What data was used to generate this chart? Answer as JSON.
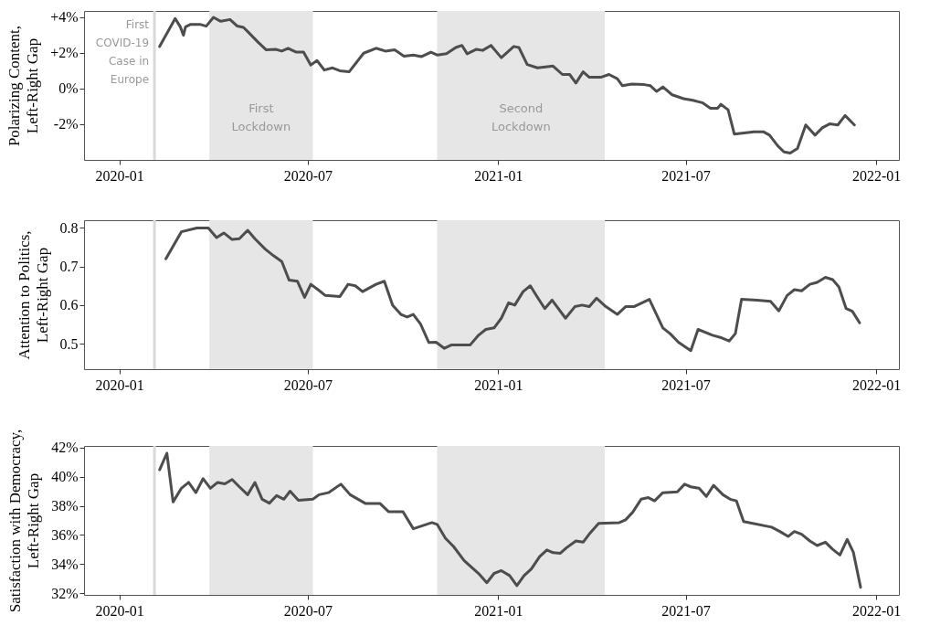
{
  "chart_data": [
    {
      "type": "line",
      "ylabel": "Polarizing Content, Left-Right Gap",
      "x": [
        "2020-02-09",
        "2020-02-18",
        "2020-02-24",
        "2020-02-29",
        "2020-03-03",
        "2020-03-05",
        "2020-03-10",
        "2020-03-19",
        "2020-03-25",
        "2020-04-01",
        "2020-04-08",
        "2020-04-17",
        "2020-04-24",
        "2020-04-30",
        "2020-05-05",
        "2020-05-14",
        "2020-05-22",
        "2020-05-31",
        "2020-06-06",
        "2020-06-12",
        "2020-06-20",
        "2020-06-27",
        "2020-07-04",
        "2020-07-10",
        "2020-07-17",
        "2020-07-25",
        "2020-08-01",
        "2020-08-10",
        "2020-08-24",
        "2020-09-05",
        "2020-09-14",
        "2020-09-23",
        "2020-10-02",
        "2020-10-11",
        "2020-10-19",
        "2020-10-28",
        "2020-11-03",
        "2020-11-12",
        "2020-11-21",
        "2020-11-27",
        "2020-12-02",
        "2020-12-11",
        "2020-12-17",
        "2020-12-25",
        "2021-01-04",
        "2021-01-16",
        "2021-01-21",
        "2021-01-29",
        "2021-02-08",
        "2021-02-23",
        "2021-03-04",
        "2021-03-11",
        "2021-03-17",
        "2021-03-24",
        "2021-03-30",
        "2021-04-10",
        "2021-04-18",
        "2021-04-26",
        "2021-05-01",
        "2021-05-10",
        "2021-05-22",
        "2021-05-28",
        "2021-06-03",
        "2021-06-09",
        "2021-06-18",
        "2021-06-29",
        "2021-07-08",
        "2021-07-17",
        "2021-07-25",
        "2021-08-01",
        "2021-08-04",
        "2021-08-11",
        "2021-08-17",
        "2021-09-05",
        "2021-09-14",
        "2021-09-20",
        "2021-09-28",
        "2021-10-04",
        "2021-10-10",
        "2021-10-17",
        "2021-10-25",
        "2021-11-03",
        "2021-11-10",
        "2021-11-17",
        "2021-11-25",
        "2021-12-02",
        "2021-12-11"
      ],
      "series": [
        {
          "color": "#4d4d4d",
          "values": [
            2.36,
            3.3,
            3.93,
            3.46,
            2.99,
            3.46,
            3.6,
            3.6,
            3.5,
            3.99,
            3.77,
            3.87,
            3.5,
            3.43,
            3.14,
            2.6,
            2.17,
            2.2,
            2.1,
            2.26,
            2.04,
            2.04,
            1.32,
            1.57,
            1.04,
            1.16,
            1.0,
            0.94,
            1.98,
            2.26,
            2.1,
            2.17,
            1.82,
            1.88,
            1.79,
            2.04,
            1.88,
            1.95,
            2.3,
            2.42,
            1.95,
            2.2,
            2.14,
            2.42,
            1.73,
            2.36,
            2.3,
            1.35,
            1.16,
            1.26,
            0.79,
            0.79,
            0.31,
            0.94,
            0.63,
            0.63,
            0.79,
            0.55,
            0.16,
            0.25,
            0.22,
            0.16,
            -0.16,
            0.09,
            -0.35,
            -0.57,
            -0.66,
            -0.79,
            -1.1,
            -1.1,
            -0.88,
            -1.19,
            -2.55,
            -2.42,
            -2.42,
            -2.61,
            -3.21,
            -3.55,
            -3.62,
            -3.36,
            -2.04,
            -2.61,
            -2.2,
            -1.98,
            -2.04,
            -1.51,
            -2.04
          ]
        }
      ],
      "xlim": [
        "2019-11-28",
        "2022-01-23"
      ],
      "xticks": [
        "2020-01",
        "2020-07",
        "2021-01",
        "2021-07",
        "2022-01"
      ],
      "ylim": [
        -4,
        4.35
      ],
      "yticks": [
        {
          "value": -2,
          "label": "-2%"
        },
        {
          "value": 0,
          "label": "0%"
        },
        {
          "value": 2,
          "label": "+2%"
        },
        {
          "value": 4,
          "label": "+4%"
        }
      ],
      "ref_lines": [
        {
          "axis": "x",
          "value": "2020-02-04",
          "label": "First COVID-19 Case in Europe",
          "color": "#d9d9d9"
        }
      ],
      "bands": [
        {
          "axis": "x",
          "from": "2020-03-28",
          "to": "2020-07-06",
          "label": "First Lockdown",
          "color": "#e6e6e6"
        },
        {
          "axis": "x",
          "from": "2020-11-03",
          "to": "2021-04-14",
          "label": "Second Lockdown",
          "color": "#e6e6e6"
        }
      ],
      "grid": false
    },
    {
      "type": "line",
      "ylabel": "Attention to Politics, Left-Right Gap",
      "x": [
        "2020-02-15",
        "2020-03-01",
        "2020-03-16",
        "2020-03-27",
        "2020-04-04",
        "2020-04-11",
        "2020-04-19",
        "2020-04-26",
        "2020-05-04",
        "2020-05-11",
        "2020-05-21",
        "2020-05-29",
        "2020-06-06",
        "2020-06-13",
        "2020-06-21",
        "2020-06-28",
        "2020-07-04",
        "2020-07-11",
        "2020-07-18",
        "2020-08-01",
        "2020-08-09",
        "2020-08-16",
        "2020-08-23",
        "2020-09-05",
        "2020-09-13",
        "2020-09-21",
        "2020-09-29",
        "2020-10-05",
        "2020-10-11",
        "2020-10-18",
        "2020-10-26",
        "2020-11-02",
        "2020-11-10",
        "2020-11-17",
        "2020-12-05",
        "2020-12-13",
        "2020-12-20",
        "2020-12-28",
        "2021-01-04",
        "2021-01-11",
        "2021-01-17",
        "2021-01-25",
        "2021-02-01",
        "2021-02-08",
        "2021-02-15",
        "2021-02-22",
        "2021-03-07",
        "2021-03-16",
        "2021-03-23",
        "2021-03-30",
        "2021-04-06",
        "2021-04-15",
        "2021-04-26",
        "2021-05-04",
        "2021-05-12",
        "2021-05-27",
        "2021-06-09",
        "2021-06-16",
        "2021-06-24",
        "2021-07-06",
        "2021-07-13",
        "2021-07-27",
        "2021-08-05",
        "2021-08-12",
        "2021-08-18",
        "2021-08-24",
        "2021-09-08",
        "2021-09-21",
        "2021-09-29",
        "2021-10-07",
        "2021-10-14",
        "2021-10-21",
        "2021-10-29",
        "2021-11-05",
        "2021-11-13",
        "2021-11-20",
        "2021-11-26",
        "2021-12-03",
        "2021-12-09",
        "2021-12-16"
      ],
      "series": [
        {
          "color": "#4d4d4d",
          "values": [
            0.72,
            0.79,
            0.8,
            0.8,
            0.775,
            0.787,
            0.77,
            0.772,
            0.794,
            0.772,
            0.745,
            0.728,
            0.713,
            0.665,
            0.662,
            0.62,
            0.654,
            0.64,
            0.625,
            0.622,
            0.654,
            0.65,
            0.635,
            0.654,
            0.662,
            0.6,
            0.576,
            0.569,
            0.576,
            0.551,
            0.503,
            0.504,
            0.488,
            0.497,
            0.497,
            0.522,
            0.537,
            0.541,
            0.566,
            0.606,
            0.6,
            0.635,
            0.65,
            0.62,
            0.591,
            0.613,
            0.566,
            0.596,
            0.6,
            0.596,
            0.618,
            0.596,
            0.576,
            0.596,
            0.596,
            0.615,
            0.541,
            0.526,
            0.504,
            0.482,
            0.537,
            0.522,
            0.515,
            0.507,
            0.526,
            0.615,
            0.613,
            0.61,
            0.585,
            0.625,
            0.64,
            0.637,
            0.654,
            0.659,
            0.672,
            0.666,
            0.647,
            0.591,
            0.584,
            0.554
          ]
        }
      ],
      "xlim": [
        "2019-11-28",
        "2022-01-23"
      ],
      "xticks": [
        "2020-01",
        "2020-07",
        "2021-01",
        "2021-07",
        "2022-01"
      ],
      "ylim": [
        0.434,
        0.82
      ],
      "yticks": [
        0.5,
        0.6,
        0.7,
        0.8
      ],
      "ref_lines": [
        {
          "axis": "x",
          "value": "2020-02-04",
          "color": "#d9d9d9"
        }
      ],
      "bands": [
        {
          "axis": "x",
          "from": "2020-03-28",
          "to": "2020-07-06",
          "color": "#e6e6e6"
        },
        {
          "axis": "x",
          "from": "2020-11-03",
          "to": "2021-04-14",
          "color": "#e6e6e6"
        }
      ],
      "grid": false
    },
    {
      "type": "line",
      "ylabel": "Satisfaction with Democracy, Left-Right Gap",
      "x": [
        "2020-02-09",
        "2020-02-16",
        "2020-02-22",
        "2020-03-01",
        "2020-03-08",
        "2020-03-15",
        "2020-03-22",
        "2020-03-29",
        "2020-04-05",
        "2020-04-12",
        "2020-04-19",
        "2020-04-26",
        "2020-05-04",
        "2020-05-11",
        "2020-05-18",
        "2020-05-25",
        "2020-06-01",
        "2020-06-08",
        "2020-06-14",
        "2020-06-22",
        "2020-07-06",
        "2020-07-12",
        "2020-07-21",
        "2020-08-02",
        "2020-08-11",
        "2020-08-26",
        "2020-09-09",
        "2020-09-17",
        "2020-10-01",
        "2020-10-11",
        "2020-10-29",
        "2020-11-03",
        "2020-11-11",
        "2020-11-19",
        "2020-11-29",
        "2020-12-13",
        "2020-12-21",
        "2020-12-28",
        "2021-01-04",
        "2021-01-12",
        "2021-01-19",
        "2021-01-26",
        "2021-02-02",
        "2021-02-10",
        "2021-02-17",
        "2021-02-23",
        "2021-03-02",
        "2021-03-08",
        "2021-03-17",
        "2021-03-24",
        "2021-03-31",
        "2021-04-08",
        "2021-04-28",
        "2021-05-04",
        "2021-05-11",
        "2021-05-19",
        "2021-05-26",
        "2021-06-01",
        "2021-06-09",
        "2021-06-23",
        "2021-06-30",
        "2021-07-06",
        "2021-07-14",
        "2021-07-21",
        "2021-07-28",
        "2021-08-06",
        "2021-08-13",
        "2021-08-19",
        "2021-08-26",
        "2021-09-22",
        "2021-09-30",
        "2021-10-08",
        "2021-10-14",
        "2021-10-21",
        "2021-10-29",
        "2021-11-05",
        "2021-11-13",
        "2021-11-20",
        "2021-11-27",
        "2021-12-04",
        "2021-12-10",
        "2021-12-17"
      ],
      "series": [
        {
          "color": "#4d4d4d",
          "values": [
            40.47,
            41.6,
            38.26,
            39.2,
            39.6,
            38.9,
            39.86,
            39.2,
            39.6,
            39.5,
            39.8,
            39.3,
            38.76,
            39.6,
            38.45,
            38.18,
            38.7,
            38.45,
            39.0,
            38.37,
            38.45,
            38.76,
            38.9,
            39.48,
            38.76,
            38.15,
            38.15,
            37.6,
            37.6,
            36.43,
            36.85,
            36.73,
            35.78,
            35.2,
            34.25,
            33.37,
            32.73,
            33.37,
            33.56,
            33.22,
            32.53,
            33.22,
            33.68,
            34.52,
            34.98,
            34.79,
            34.75,
            35.13,
            35.59,
            35.51,
            36.16,
            36.8,
            36.85,
            37.04,
            37.57,
            38.45,
            38.56,
            38.34,
            38.9,
            38.95,
            39.48,
            39.3,
            39.2,
            38.64,
            39.4,
            38.76,
            38.45,
            38.34,
            36.92,
            36.54,
            36.24,
            35.9,
            36.24,
            36.05,
            35.59,
            35.28,
            35.51,
            35.02,
            34.63,
            35.7,
            34.82,
            32.42
          ]
        }
      ],
      "xlim": [
        "2019-11-28",
        "2022-01-23"
      ],
      "xticks": [
        "2020-01",
        "2020-07",
        "2021-01",
        "2021-07",
        "2022-01"
      ],
      "ylim": [
        31.9,
        42.1
      ],
      "yticks": [
        {
          "value": 32,
          "label": "32%"
        },
        {
          "value": 34,
          "label": "34%"
        },
        {
          "value": 36,
          "label": "36%"
        },
        {
          "value": 38,
          "label": "38%"
        },
        {
          "value": 40,
          "label": "40%"
        },
        {
          "value": 42,
          "label": "42%"
        }
      ],
      "ref_lines": [
        {
          "axis": "x",
          "value": "2020-02-04",
          "color": "#d9d9d9"
        }
      ],
      "bands": [
        {
          "axis": "x",
          "from": "2020-03-28",
          "to": "2020-07-06",
          "color": "#e6e6e6"
        },
        {
          "axis": "x",
          "from": "2020-11-03",
          "to": "2021-04-14",
          "color": "#e6e6e6"
        }
      ],
      "grid": false
    }
  ]
}
